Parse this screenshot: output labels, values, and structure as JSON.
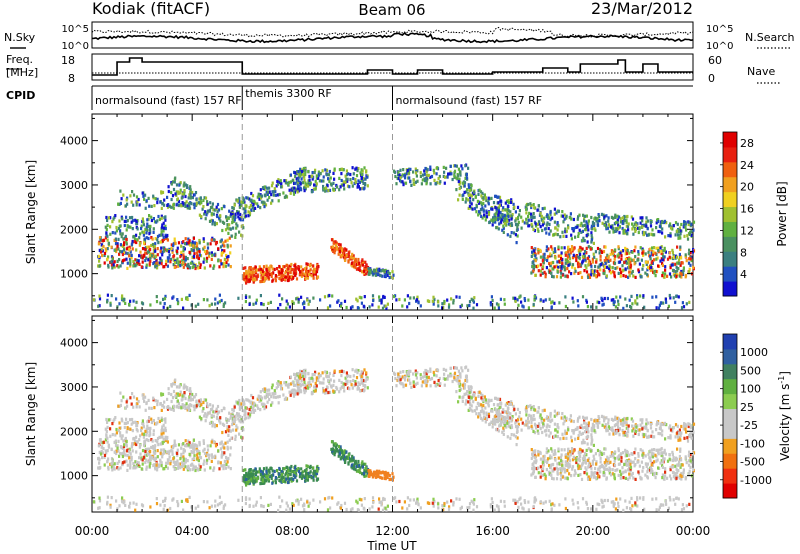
{
  "header": {
    "station": "Kodiak (fitACF)",
    "beam": "Beam 06",
    "date": "23/Mar/2012"
  },
  "noise_panel": {
    "left_label": "N.Sky",
    "right_label": "N.Search",
    "left_ticks": [
      "10^5",
      "10^0"
    ],
    "right_ticks": [
      "10^5",
      "10^0"
    ]
  },
  "freq_panel": {
    "left_label_line1": "Freq.",
    "left_label_line2": "[MHz]",
    "right_label": "Nave",
    "left_ticks": [
      "18",
      "8"
    ],
    "right_ticks": [
      "60",
      "0"
    ]
  },
  "cpid": {
    "label": "CPID",
    "segments": [
      {
        "label": "normalsound (fast) 157 RF",
        "start_hour": 0,
        "end_hour": 6
      },
      {
        "label": "themis 3300 RF",
        "start_hour": 6,
        "end_hour": 12
      },
      {
        "label": "normalsound (fast) 157 RF",
        "start_hour": 12,
        "end_hour": 24
      }
    ]
  },
  "chart_data": [
    {
      "type": "heatmap",
      "title": "",
      "xlabel": "",
      "ylabel": "Slant Range [km]",
      "xlim": [
        0,
        24
      ],
      "ylim": [
        180,
        4600
      ],
      "yticks": [
        "1000",
        "2000",
        "3000",
        "4000"
      ],
      "colorbar": {
        "label": "Power [dB]",
        "ticks": [
          "4",
          "8",
          "12",
          "16",
          "20",
          "24",
          "28"
        ],
        "range": [
          0,
          30
        ],
        "colors": [
          "#1010d0",
          "#2050c0",
          "#3a7f80",
          "#4a9060",
          "#60b040",
          "#a0c030",
          "#f0d020",
          "#f0a020",
          "#f06010",
          "#e82010",
          "#e00000"
        ]
      }
    },
    {
      "type": "heatmap",
      "title": "",
      "xlabel": "Time UT",
      "ylabel": "Slant Range [km]",
      "xlim": [
        0,
        24
      ],
      "xticks": [
        "00:00",
        "04:00",
        "08:00",
        "12:00",
        "16:00",
        "20:00",
        "00:00"
      ],
      "ylim": [
        180,
        4600
      ],
      "yticks": [
        "1000",
        "2000",
        "3000",
        "4000"
      ],
      "colorbar": {
        "label": "Velocity [m s",
        "label_sup": "-1",
        "label_end": "]",
        "ticks": [
          "1000",
          "500",
          "100",
          "25",
          "-25",
          "-100",
          "-500",
          "-1000"
        ],
        "colors": [
          "#2040b0",
          "#3060a0",
          "#408060",
          "#60b040",
          "#8ccc50",
          "#c8c8c8",
          "#c8c8c8",
          "#f0a020",
          "#f07010",
          "#f03010",
          "#e00000"
        ]
      }
    }
  ]
}
